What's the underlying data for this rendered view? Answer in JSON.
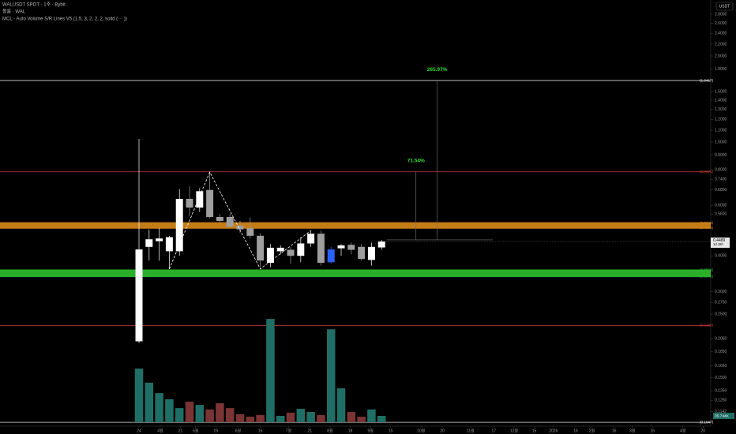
{
  "chart_data": {
    "type": "candlestick",
    "title": "WALUSDT SPOT · 1주 · Bybit",
    "subtitle": "볼륨 · WAL",
    "indicator": "MCL - Auto Volume S/R Lines V5 (1.5, 3, 2, 2, 2, solid (··· ))",
    "currency": "USDT",
    "log_scale": true,
    "x": [
      0,
      1,
      2,
      3,
      4,
      5,
      6,
      7,
      8,
      9,
      10,
      11,
      12,
      13,
      14,
      15,
      16,
      17,
      18,
      19,
      20,
      21,
      22,
      23,
      24
    ],
    "open": [
      0.201,
      0.43,
      0.45,
      0.415,
      0.415,
      0.633,
      0.59,
      0.68,
      0.547,
      0.547,
      0.51,
      0.5,
      0.47,
      0.378,
      0.415,
      0.42,
      0.4,
      0.442,
      0.478,
      0.38,
      0.425,
      0.437,
      0.43,
      0.387,
      0.428
    ],
    "high": [
      1.026,
      0.495,
      0.5,
      0.47,
      0.685,
      0.7,
      0.69,
      0.785,
      0.56,
      0.56,
      0.53,
      0.545,
      0.48,
      0.44,
      0.435,
      0.43,
      0.465,
      0.49,
      0.49,
      0.43,
      0.44,
      0.445,
      0.44,
      0.445,
      0.455
    ],
    "low": [
      0.198,
      0.385,
      0.385,
      0.36,
      0.4,
      0.55,
      0.57,
      0.54,
      0.52,
      0.5,
      0.48,
      0.46,
      0.365,
      0.365,
      0.405,
      0.375,
      0.38,
      0.43,
      0.37,
      0.375,
      0.4,
      0.405,
      0.385,
      0.37,
      0.42
    ],
    "close": [
      0.421,
      0.457,
      0.46,
      0.465,
      0.633,
      0.59,
      0.673,
      0.547,
      0.53,
      0.506,
      0.495,
      0.47,
      0.385,
      0.427,
      0.427,
      0.4,
      0.442,
      0.478,
      0.378,
      0.421,
      0.435,
      0.42,
      0.39,
      0.43,
      0.4489
    ],
    "colors": [
      "#ffffff",
      "#ffffff",
      "#ffffff",
      "#ffffff",
      "#ffffff",
      "#9e9e9e",
      "#ffffff",
      "#9e9e9e",
      "#9e9e9e",
      "#9e9e9e",
      "#9e9e9e",
      "#9e9e9e",
      "#9e9e9e",
      "#ffffff",
      "#ffffff",
      "#9e9e9e",
      "#ffffff",
      "#ffffff",
      "#9e9e9e",
      "#2962ff",
      "#ffffff",
      "#9e9e9e",
      "#9e9e9e",
      "#ffffff",
      "#ffffff"
    ],
    "volume": {
      "values": [
        304,
        224,
        165,
        130,
        80,
        116,
        98,
        72,
        107,
        80,
        45,
        31,
        40,
        586,
        36,
        54,
        76,
        58,
        40,
        527,
        192,
        58,
        31,
        72,
        35.744
      ],
      "up_color": "#1f6f66",
      "down_color": "#7b3434",
      "vlim": [
        0,
        600
      ]
    },
    "current_volume": {
      "value": 35.744,
      "label": "35.744K"
    },
    "last_price": 0.4489,
    "countdown": "1d 18h",
    "levels": [
      {
        "value": 1.6417,
        "label": "(1.6417)",
        "color": "#ffffff"
      },
      {
        "value": 0.7871,
        "label": "(0.7871)",
        "color": "#d23c3c"
      },
      {
        "value": 0.2283,
        "label": "(0.2283)",
        "color": "#d23c3c"
      },
      {
        "value": 0.1047,
        "label": "(0.1047)",
        "color": "#ffffff"
      }
    ],
    "bands": [
      {
        "top": 0.5243,
        "bottom": 0.4978,
        "top_label": "(0.5243)",
        "bottom_label": "(0.4978)",
        "color": "#d98a1a"
      },
      {
        "top": 0.3584,
        "bottom": 0.3371,
        "top_label": "(0.3584)",
        "bottom_label": "(0.3371)",
        "color": "#2fc12f"
      }
    ],
    "zigzag": {
      "x": [
        3,
        7,
        12,
        17
      ],
      "y": [
        0.36,
        0.785,
        0.36,
        0.49
      ]
    },
    "measure": {
      "base": 0.455,
      "x": [
        24.5,
        35.0
      ]
    },
    "targets": [
      {
        "label": "265.97%",
        "price": 1.6417,
        "x": 29.5
      },
      {
        "label": "71.54%",
        "price": 0.7871,
        "x": 27.4
      }
    ],
    "xlim": [
      -13.75,
      56.56
    ],
    "xticks": [
      {
        "value": 0,
        "label": "24"
      },
      {
        "value": 2.1,
        "label": "4월"
      },
      {
        "value": 4.1,
        "label": "21"
      },
      {
        "value": 5.6,
        "label": "5월"
      },
      {
        "value": 7.6,
        "label": "19"
      },
      {
        "value": 9.8,
        "label": "6월"
      },
      {
        "value": 12.0,
        "label": "16"
      },
      {
        "value": 14.8,
        "label": "7월"
      },
      {
        "value": 16.9,
        "label": "21"
      },
      {
        "value": 18.9,
        "label": "8월"
      },
      {
        "value": 20.9,
        "label": "18"
      },
      {
        "value": 22.9,
        "label": "9월"
      },
      {
        "value": 24.9,
        "label": "15"
      },
      {
        "value": 27.9,
        "label": "10월"
      },
      {
        "value": 30.0,
        "label": "20"
      },
      {
        "value": 32.8,
        "label": "11월"
      },
      {
        "value": 35.1,
        "label": "17"
      },
      {
        "value": 37.1,
        "label": "12월"
      },
      {
        "value": 39.1,
        "label": "15"
      },
      {
        "value": 41.0,
        "label": "2026"
      },
      {
        "value": 43.2,
        "label": "16"
      },
      {
        "value": 44.8,
        "label": "2월"
      },
      {
        "value": 47.0,
        "label": "16"
      },
      {
        "value": 48.8,
        "label": "3월"
      },
      {
        "value": 50.8,
        "label": "16"
      },
      {
        "value": 53.8,
        "label": "4월"
      },
      {
        "value": 55.8,
        "label": "20"
      }
    ],
    "ylim": [
      0.1015,
      3.14
    ],
    "yticks": [
      {
        "value": 2.8,
        "label": "2.8000"
      },
      {
        "value": 2.6,
        "label": "2.6000"
      },
      {
        "value": 2.4,
        "label": "2.4000"
      },
      {
        "value": 2.2,
        "label": "2.2000"
      },
      {
        "value": 2.0,
        "label": "2.0000"
      },
      {
        "value": 1.8,
        "label": "1.8000"
      },
      {
        "value": 1.5,
        "label": "1.5000"
      },
      {
        "value": 1.4,
        "label": "1.4000"
      },
      {
        "value": 1.3,
        "label": "1.3000"
      },
      {
        "value": 1.2,
        "label": "1.2000"
      },
      {
        "value": 1.1,
        "label": "1.1000"
      },
      {
        "value": 1.0,
        "label": "1.0000"
      },
      {
        "value": 0.9,
        "label": "0.9000"
      },
      {
        "value": 0.8,
        "label": "0.8000"
      },
      {
        "value": 0.74,
        "label": "0.7400"
      },
      {
        "value": 0.68,
        "label": "0.6800"
      },
      {
        "value": 0.6,
        "label": "0.6000"
      },
      {
        "value": 0.56,
        "label": "0.5600"
      },
      {
        "value": 0.4,
        "label": "0.4000"
      },
      {
        "value": 0.3,
        "label": "0.3000"
      },
      {
        "value": 0.275,
        "label": "0.2750"
      },
      {
        "value": 0.25,
        "label": "0.2500"
      },
      {
        "value": 0.205,
        "label": "0.2050"
      },
      {
        "value": 0.185,
        "label": "0.1850"
      },
      {
        "value": 0.165,
        "label": "0.1650"
      },
      {
        "value": 0.15,
        "label": "0.1500"
      },
      {
        "value": 0.135,
        "label": "0.1350"
      },
      {
        "value": 0.125,
        "label": "0.1250"
      },
      {
        "value": 0.1142,
        "label": "0.1142"
      }
    ]
  }
}
